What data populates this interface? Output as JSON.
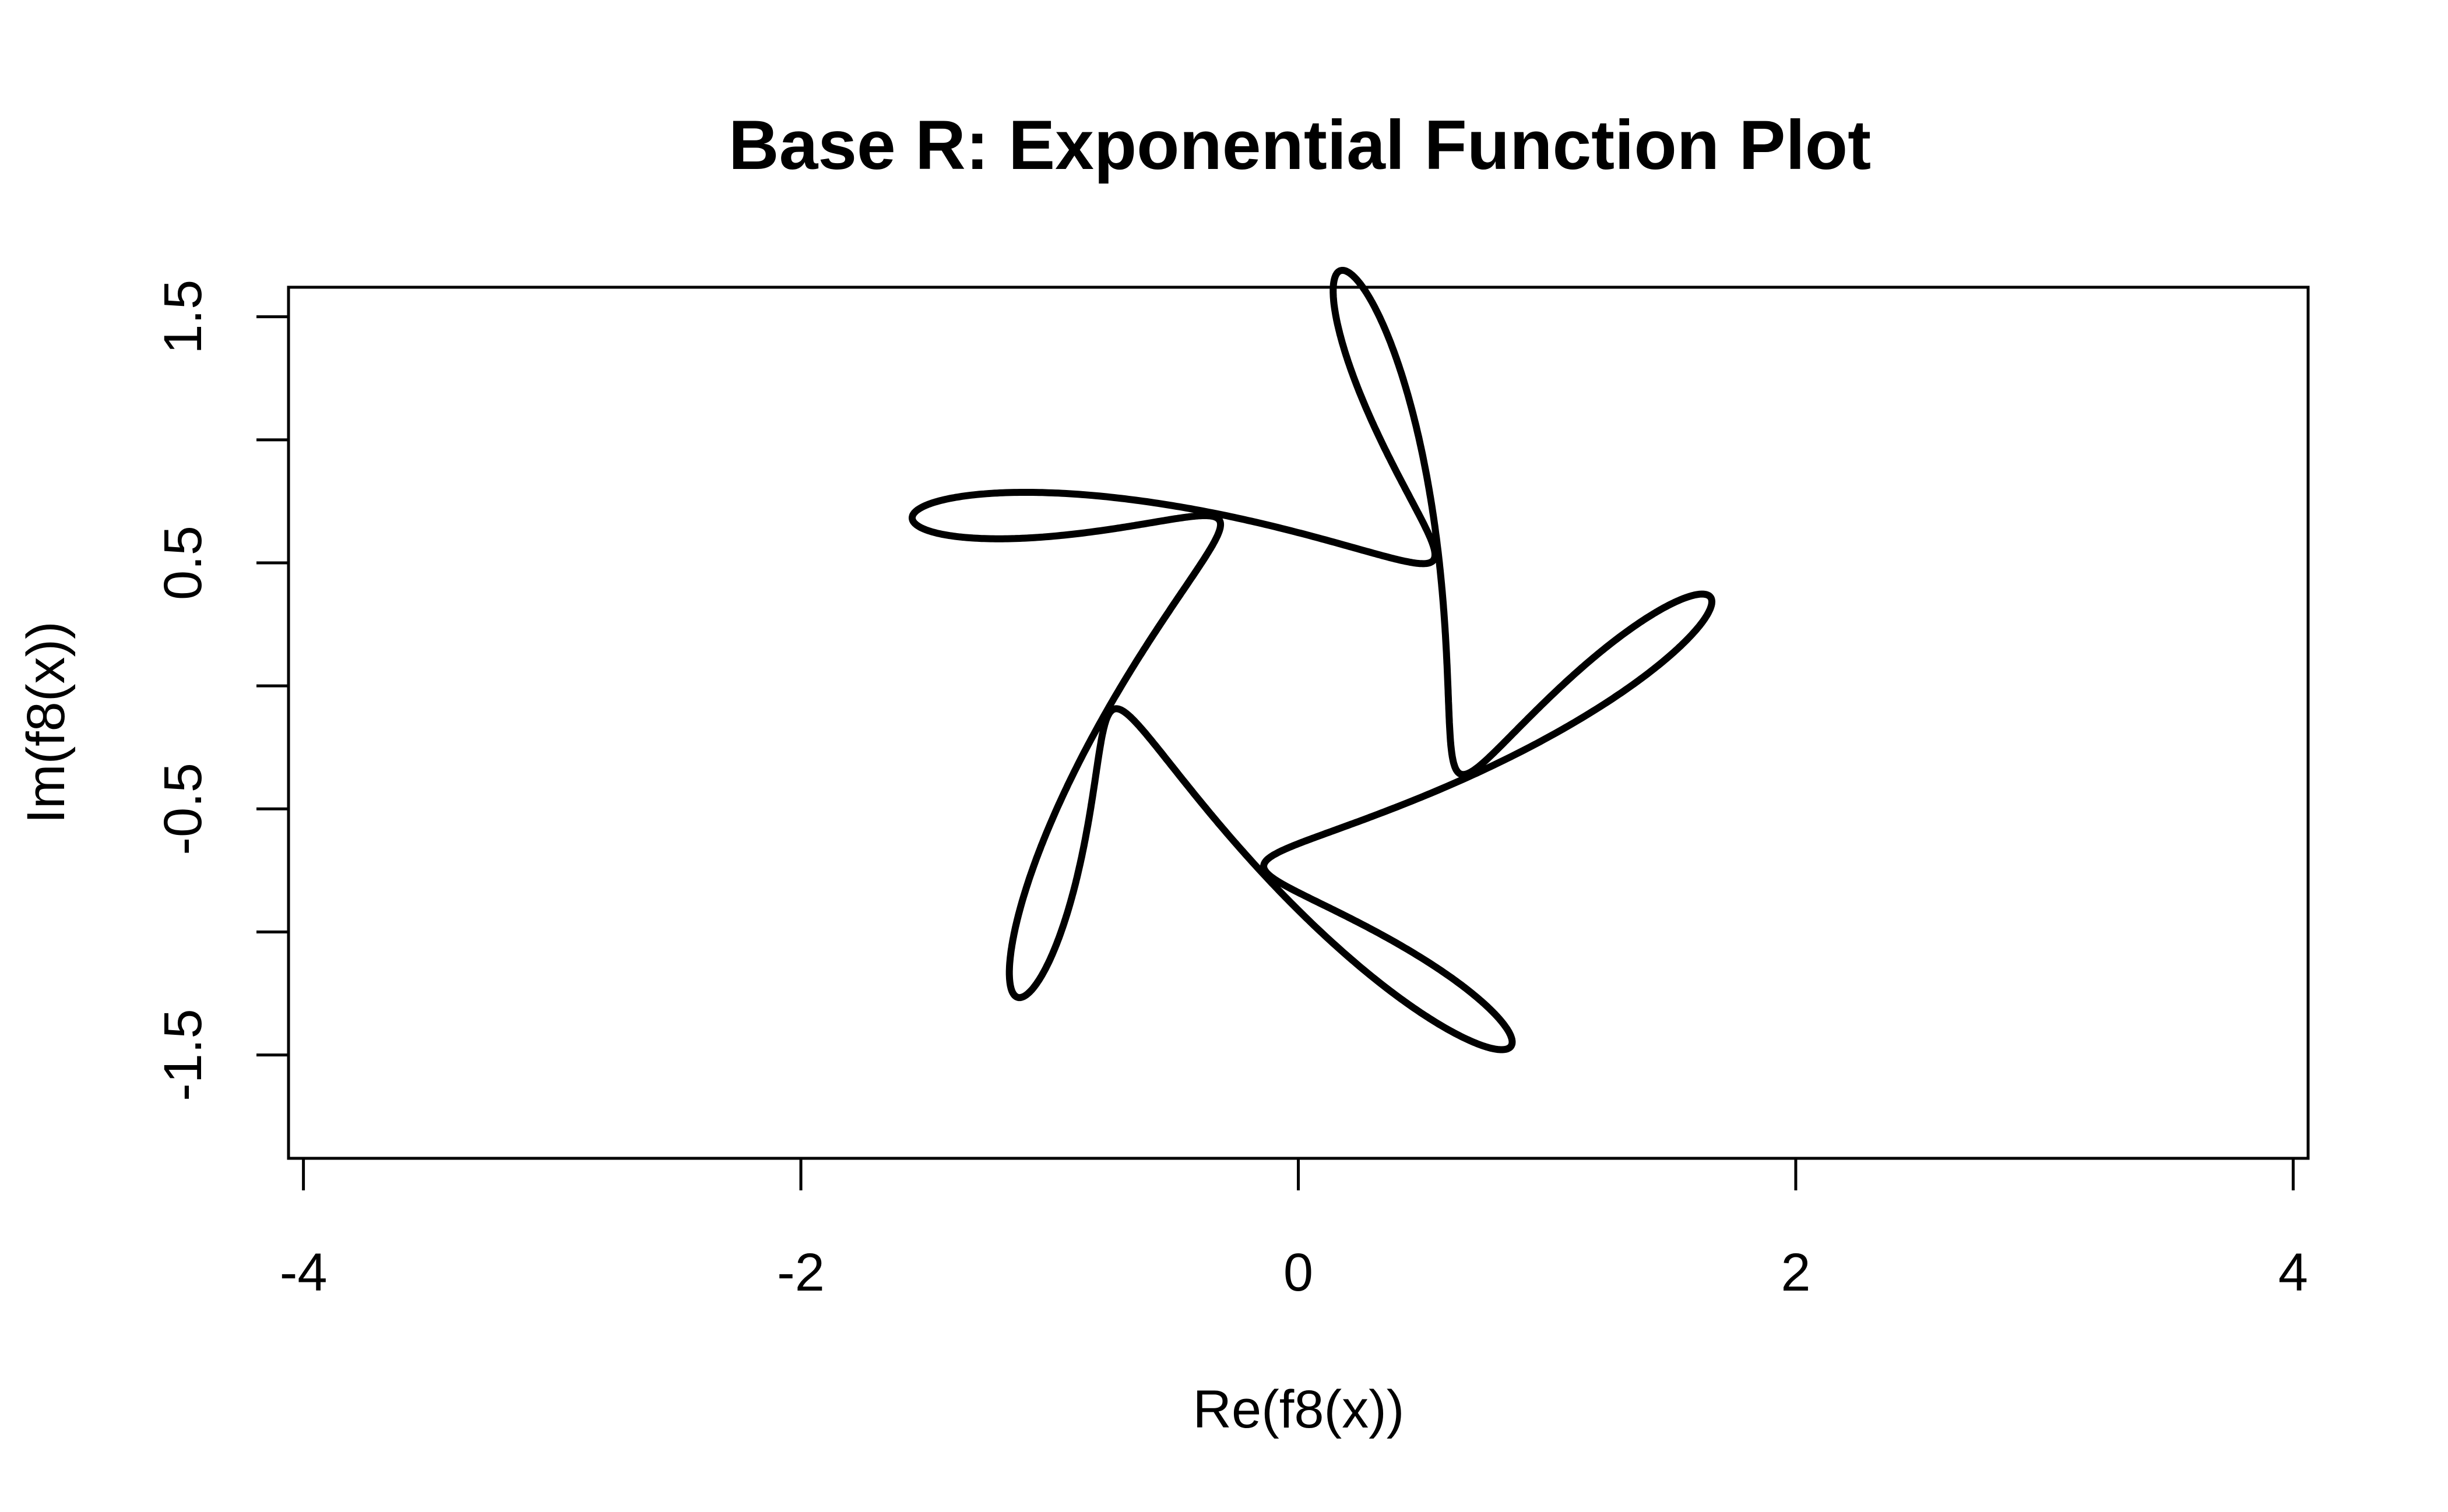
{
  "chart_data": {
    "type": "line",
    "title": "Base R: Exponential Function Plot",
    "xlabel": "Re(f8(x))",
    "ylabel": "Im(f8(x))",
    "xlim": [
      -4.06,
      4.06
    ],
    "ylim": [
      -1.92,
      1.62
    ],
    "xticks": [
      -4,
      -2,
      0,
      2,
      4
    ],
    "yticks": [
      -1.5,
      -1.0,
      -0.5,
      0.0,
      0.5,
      1.0,
      1.5
    ],
    "ytick_labels": [
      {
        "value": -1.5,
        "label": "-1.5"
      },
      {
        "value": -0.5,
        "label": "-0.5"
      },
      {
        "value": 0.5,
        "label": "0.5"
      },
      {
        "value": 1.5,
        "label": "1.5"
      }
    ],
    "grid": false,
    "legend": "none",
    "line_color": "#000000",
    "series": [
      {
        "function": "f8(x) = exp(i*x) + exp(-4i*x)/2 + i*exp(6i*x)/3",
        "x_domain": [
          0,
          6.2832
        ],
        "samples": 2000
      }
    ]
  }
}
